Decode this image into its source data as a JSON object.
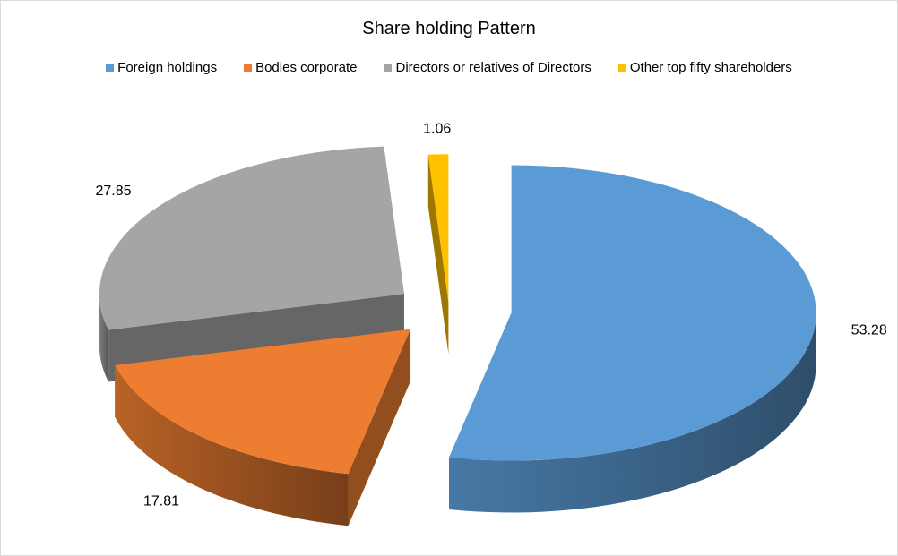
{
  "chart_data": {
    "type": "pie",
    "title": "Share holding Pattern",
    "legend_position": "top",
    "three_d": true,
    "exploded": true,
    "slices": [
      {
        "name": "Foreign holdings",
        "value": 53.28,
        "label": "53.28",
        "color": "#5B9BD5"
      },
      {
        "name": "Bodies corporate",
        "value": 17.81,
        "label": "17.81",
        "color": "#ED7D31"
      },
      {
        "name": "Directors or relatives of Directors",
        "value": 27.85,
        "label": "27.85",
        "color": "#A5A5A5"
      },
      {
        "name": "Other top fifty shareholders",
        "value": 1.06,
        "label": "1.06",
        "color": "#FFC000"
      }
    ]
  }
}
